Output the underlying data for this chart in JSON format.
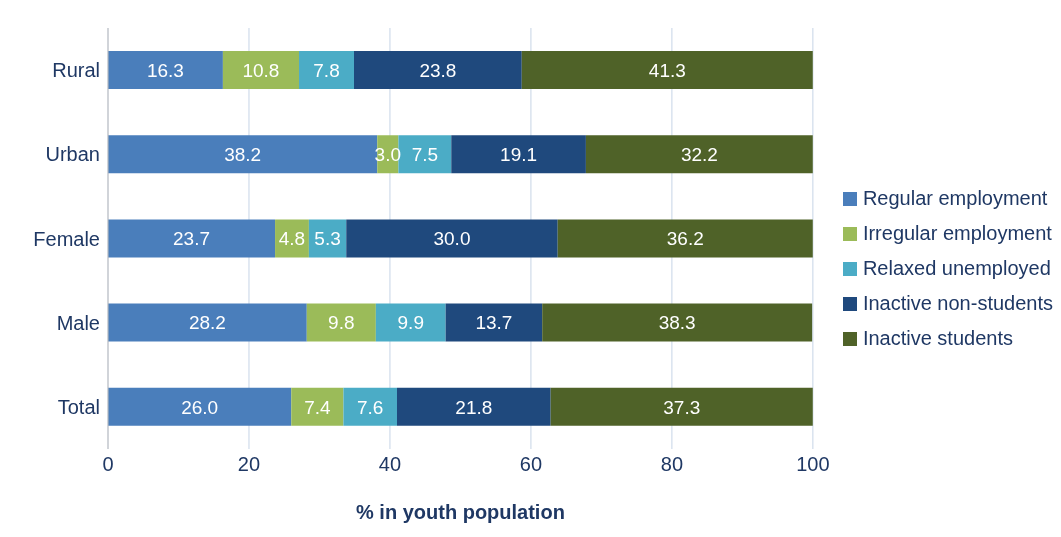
{
  "chart_data": {
    "type": "bar",
    "orientation": "horizontal",
    "stacked": true,
    "xlabel": "% in youth population",
    "categories": [
      "Rural",
      "Urban",
      "Female",
      "Male",
      "Total"
    ],
    "series": [
      {
        "name": "Regular employment",
        "color": "#4a7ebb",
        "values": [
          16.3,
          38.2,
          23.7,
          28.2,
          26.0
        ],
        "value_labels": [
          "16.3",
          "38.2",
          "23.7",
          "28.2",
          "26.0"
        ]
      },
      {
        "name": "Irregular employment",
        "color": "#9bbb59",
        "values": [
          10.8,
          3.0,
          4.8,
          9.8,
          7.4
        ],
        "value_labels": [
          "10.8",
          "3.0",
          "4.8",
          "9.8",
          "7.4"
        ]
      },
      {
        "name": "Relaxed unemployed",
        "color": "#4bacc6",
        "values": [
          7.8,
          7.5,
          5.3,
          9.9,
          7.6
        ],
        "value_labels": [
          "7.8",
          "7.5",
          "5.3",
          "9.9",
          "7.6"
        ]
      },
      {
        "name": "Inactive non-students",
        "color": "#1f497d",
        "values": [
          23.8,
          19.1,
          30.0,
          13.7,
          21.8
        ],
        "value_labels": [
          "23.8",
          "19.1",
          "30.0",
          "13.7",
          "21.8"
        ]
      },
      {
        "name": "Inactive students",
        "color": "#4f6228",
        "values": [
          41.3,
          32.2,
          36.2,
          38.3,
          37.3
        ],
        "value_labels": [
          "41.3",
          "32.2",
          "36.2",
          "38.3",
          "37.3"
        ]
      }
    ],
    "xlim": [
      0,
      100
    ],
    "xticks": [
      0,
      20,
      40,
      60,
      80,
      100
    ],
    "grid": "x",
    "legend": "right"
  }
}
